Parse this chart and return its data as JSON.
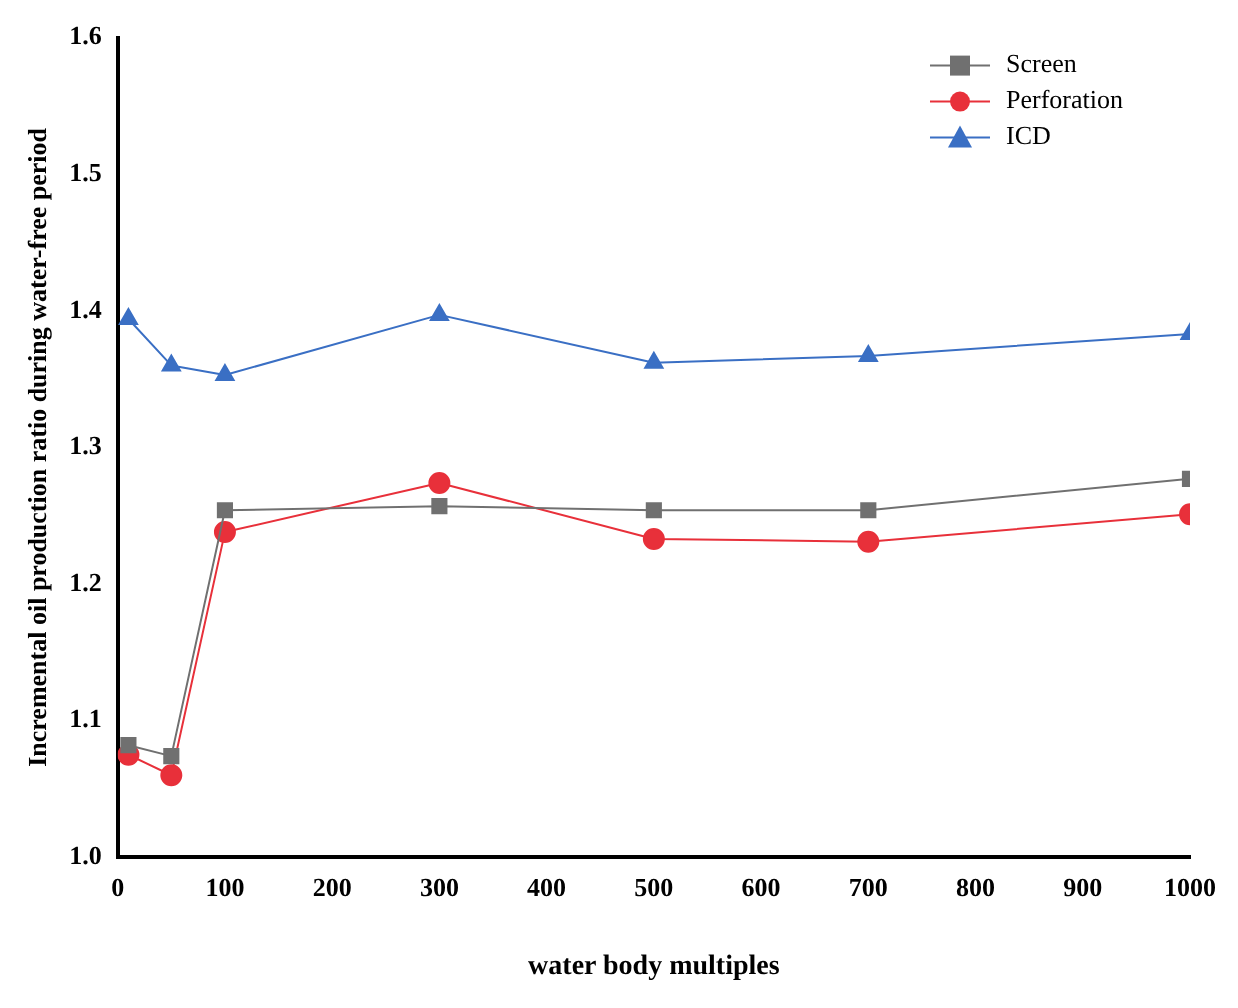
{
  "chart_data": {
    "type": "line",
    "xlabel": "water body multiples",
    "ylabel": "Incremental oil production ratio during water-free period",
    "xlim": [
      0,
      1000
    ],
    "xticks": [
      0,
      100,
      200,
      300,
      400,
      500,
      600,
      700,
      800,
      900,
      1000
    ],
    "ylim": [
      1.0,
      1.6
    ],
    "yticks": [
      {
        "value": 1.0,
        "label": "1.0"
      },
      1.1,
      1.2,
      1.3,
      1.4,
      1.5,
      1.6
    ],
    "x": [
      10,
      50,
      100,
      300,
      500,
      700,
      1000
    ],
    "series": [
      {
        "name": "Screen",
        "color": "#707070",
        "marker": "square",
        "values": [
          1.082,
          1.074,
          1.254,
          1.257,
          1.254,
          1.254,
          1.277
        ]
      },
      {
        "name": "Perforation",
        "color": "#e8303a",
        "marker": "circle",
        "values": [
          1.075,
          1.06,
          1.238,
          1.274,
          1.233,
          1.231,
          1.251
        ]
      },
      {
        "name": "ICD",
        "color": "#3a6fc4",
        "marker": "triangle",
        "values": [
          1.394,
          1.36,
          1.353,
          1.397,
          1.362,
          1.367,
          1.383
        ]
      }
    ],
    "grid": false,
    "legend": "top right",
    "line_style": "solid"
  }
}
